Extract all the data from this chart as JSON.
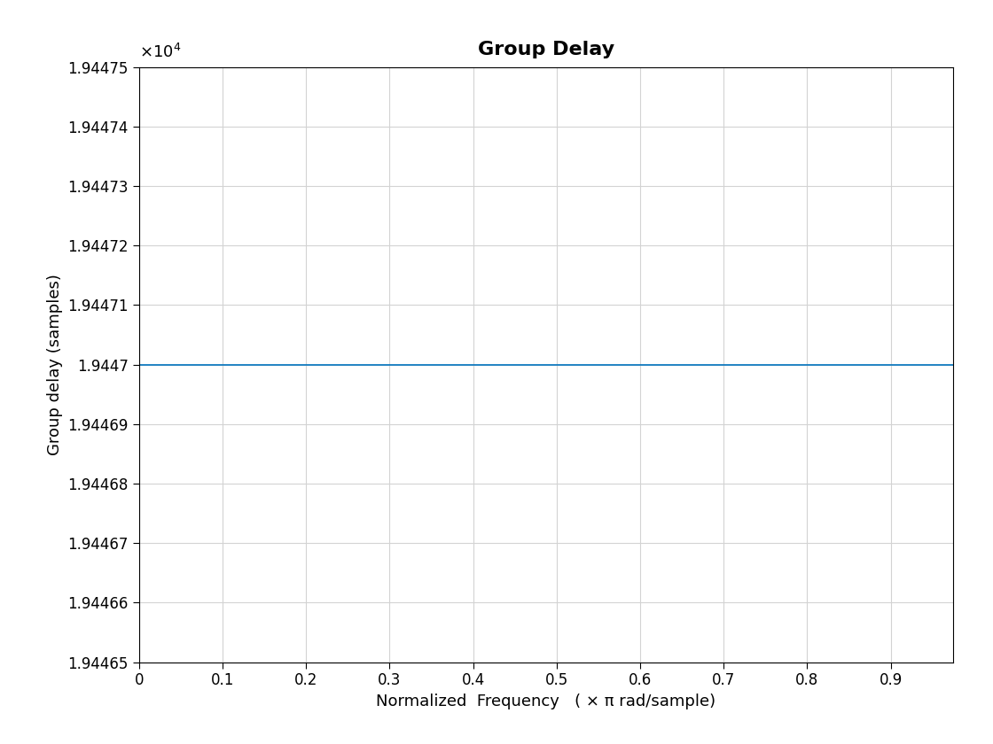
{
  "title": "Group Delay",
  "xlabel": "Normalized  Frequency   ( × π rad/sample)",
  "ylabel": "Group delay (samples)",
  "line_color": "#0072BD",
  "line_value": 19447.0,
  "xlim": [
    0,
    0.975
  ],
  "ylim": [
    19446.5,
    19447.5
  ],
  "yticks": [
    19446.5,
    19446.6,
    19446.7,
    19446.8,
    19446.9,
    19447.0,
    19447.1,
    19447.2,
    19447.3,
    19447.4,
    19447.5
  ],
  "ytick_labels": [
    "1.94465",
    "1.94466",
    "1.94467",
    "1.94468",
    "1.94469",
    "1.9447",
    "1.94471",
    "1.94472",
    "1.94473",
    "1.94474",
    "1.94475"
  ],
  "xticks": [
    0,
    0.1,
    0.2,
    0.3,
    0.4,
    0.5,
    0.6,
    0.7,
    0.8,
    0.9
  ],
  "xtick_labels": [
    "0",
    "0.1",
    "0.2",
    "0.3",
    "0.4",
    "0.5",
    "0.6",
    "0.7",
    "0.8",
    "0.9"
  ],
  "title_fontsize": 16,
  "label_fontsize": 13,
  "tick_fontsize": 12,
  "line_width": 1.2,
  "background_color": "#ffffff",
  "grid_color": "#d3d3d3",
  "exponent_text": "×10⁴"
}
